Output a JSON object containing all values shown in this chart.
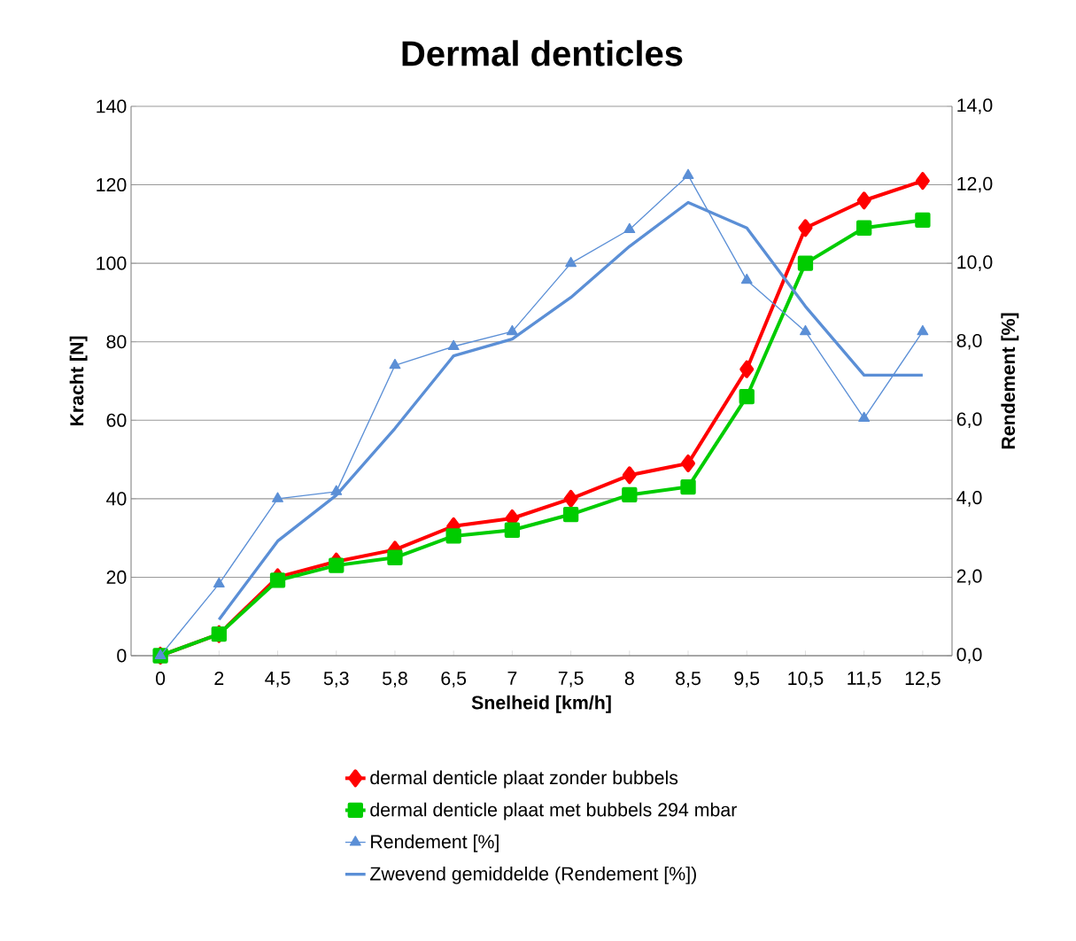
{
  "chart_data": {
    "type": "line",
    "title": "Dermal denticles",
    "xlabel": "Snelheid [km/h]",
    "ylabel": "Kracht [N]",
    "y2label": "Rendement [%]",
    "categories": [
      "0",
      "2",
      "4,5",
      "5,3",
      "5,8",
      "6,5",
      "7",
      "7,5",
      "8",
      "8,5",
      "9,5",
      "10,5",
      "11,5",
      "12,5"
    ],
    "series": [
      {
        "name": "dermal denticle plaat zonder bubbels",
        "color": "#ff0000",
        "marker": "diamond",
        "values": [
          0,
          5.5,
          20,
          24,
          27,
          33,
          35,
          40,
          46,
          49,
          73,
          109,
          116,
          121
        ]
      },
      {
        "name": "dermal denticle plaat met bubbels 294 mbar",
        "color": "#00cc00",
        "marker": "square",
        "values": [
          0,
          5.5,
          19.2,
          23,
          25,
          30.5,
          32,
          36,
          41,
          43,
          66,
          100,
          109,
          111
        ]
      },
      {
        "name": "Rendement [%]",
        "color": "#5b8fd6",
        "marker": "triangle",
        "axis": "y2",
        "values": [
          0,
          1.83,
          4.0,
          4.18,
          7.4,
          7.88,
          8.26,
          10.0,
          10.86,
          12.24,
          9.57,
          8.26,
          6.05,
          8.26
        ]
      },
      {
        "name": "Zwevend gemiddelde (Rendement [%])",
        "color": "#5b8fd6",
        "marker": "none",
        "axis": "y2",
        "values": [
          null,
          0.92,
          2.92,
          4.09,
          5.79,
          7.64,
          8.07,
          9.13,
          10.43,
          11.55,
          10.9,
          8.9,
          7.15,
          7.15
        ]
      }
    ],
    "ylim": [
      0,
      140
    ],
    "yticks": [
      0,
      20,
      40,
      60,
      80,
      100,
      120,
      140
    ],
    "y2lim": [
      0,
      14
    ],
    "y2ticks": [
      {
        "value": 0,
        "label": "0,0"
      },
      {
        "value": 2,
        "label": "2,0"
      },
      {
        "value": 4,
        "label": "4,0"
      },
      {
        "value": 6,
        "label": "6,0"
      },
      {
        "value": 8,
        "label": "8,0"
      },
      {
        "value": 10,
        "label": "10,0"
      },
      {
        "value": 12,
        "label": "12,0"
      },
      {
        "value": 14,
        "label": "14,0"
      }
    ],
    "grid": "y",
    "legend": "bottom"
  }
}
